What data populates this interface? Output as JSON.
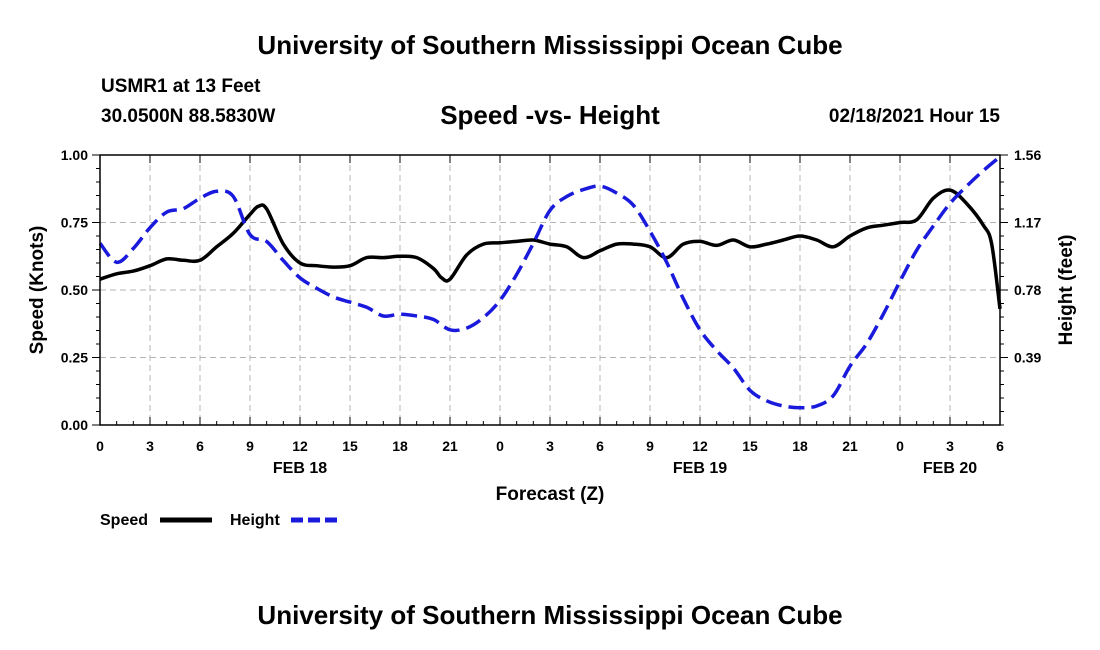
{
  "header": {
    "org_title": "University of Southern Mississippi Ocean Cube",
    "station": "USMR1 at 13 Feet",
    "coords": "30.0500N 88.5830W",
    "chart_title": "Speed -vs- Height",
    "timestamp": "02/18/2021 Hour 15"
  },
  "footer": {
    "org_title": "University of Southern Mississippi Ocean Cube"
  },
  "legend": {
    "speed_label": "Speed",
    "height_label": "Height"
  },
  "colors": {
    "speed": "#000000",
    "height": "#1a1adc",
    "grid": "#b4b4b4"
  },
  "chart_data": {
    "type": "line",
    "title": "Speed -vs- Height",
    "xlabel": "Forecast (Z)",
    "ylabel": "Speed (Knots)",
    "y2label": "Height (feet)",
    "xlim": [
      0,
      54
    ],
    "ylim": [
      0,
      1
    ],
    "y2lim": [
      0,
      1.56
    ],
    "x_ticks": [
      0,
      3,
      6,
      9,
      12,
      15,
      18,
      21,
      24,
      27,
      30,
      33,
      36,
      39,
      42,
      45,
      48,
      51,
      54
    ],
    "x_tick_labels": [
      "0",
      "3",
      "6",
      "9",
      "12",
      "15",
      "18",
      "21",
      "0",
      "3",
      "6",
      "9",
      "12",
      "15",
      "18",
      "21",
      "0",
      "3",
      "6"
    ],
    "date_labels": [
      {
        "x": 12,
        "label": "FEB 18"
      },
      {
        "x": 36,
        "label": "FEB 19"
      },
      {
        "x": 51,
        "label": "FEB 20"
      }
    ],
    "y_ticks": [
      0,
      0.25,
      0.5,
      0.75,
      1.0
    ],
    "y_tick_labels": [
      "0.00",
      "0.25",
      "0.50",
      "0.75",
      "1.00"
    ],
    "y2_ticks": [
      0.39,
      0.78,
      1.17,
      1.56
    ],
    "y2_tick_labels": [
      "0.39",
      "0.78",
      "1.17",
      "1.56"
    ],
    "grid": true,
    "series": [
      {
        "name": "Speed",
        "axis": "left",
        "style": "solid",
        "x": [
          0,
          1,
          2,
          3,
          4,
          5,
          6,
          7,
          8,
          9,
          9.5,
          10,
          11,
          12,
          13,
          14,
          15,
          16,
          17,
          18,
          19,
          20,
          20.5,
          21,
          22,
          23,
          24,
          25,
          26,
          27,
          28,
          29,
          30,
          31,
          32,
          33,
          34,
          35,
          36,
          37,
          38,
          39,
          40,
          41,
          42,
          43,
          44,
          45,
          46,
          47,
          48,
          49,
          50,
          51,
          52,
          53,
          53.5,
          54
        ],
        "values": [
          0.54,
          0.56,
          0.57,
          0.59,
          0.615,
          0.61,
          0.61,
          0.66,
          0.71,
          0.78,
          0.81,
          0.8,
          0.67,
          0.6,
          0.59,
          0.585,
          0.59,
          0.62,
          0.62,
          0.625,
          0.62,
          0.58,
          0.545,
          0.54,
          0.63,
          0.67,
          0.675,
          0.68,
          0.685,
          0.67,
          0.66,
          0.62,
          0.645,
          0.67,
          0.67,
          0.66,
          0.62,
          0.67,
          0.68,
          0.665,
          0.685,
          0.66,
          0.67,
          0.685,
          0.7,
          0.685,
          0.66,
          0.7,
          0.73,
          0.74,
          0.75,
          0.76,
          0.84,
          0.87,
          0.82,
          0.74,
          0.67,
          0.43
        ]
      },
      {
        "name": "Height",
        "axis": "right",
        "style": "dashed",
        "x": [
          0,
          1,
          2,
          3,
          4,
          5,
          6,
          7,
          8,
          9,
          10,
          11,
          12,
          13,
          14,
          15,
          16,
          17,
          18,
          19,
          20,
          21,
          22,
          23,
          24,
          25,
          26,
          27,
          28,
          29,
          30,
          31,
          32,
          33,
          34,
          35,
          36,
          37,
          38,
          39,
          40,
          41,
          42,
          43,
          44,
          45,
          46,
          47,
          48,
          49,
          50,
          51,
          52,
          53,
          54
        ],
        "values": [
          1.05,
          0.94,
          1.02,
          1.14,
          1.23,
          1.25,
          1.31,
          1.35,
          1.32,
          1.1,
          1.06,
          0.95,
          0.85,
          0.79,
          0.74,
          0.71,
          0.68,
          0.63,
          0.64,
          0.63,
          0.61,
          0.55,
          0.56,
          0.62,
          0.72,
          0.87,
          1.05,
          1.24,
          1.32,
          1.36,
          1.38,
          1.34,
          1.27,
          1.12,
          0.94,
          0.73,
          0.55,
          0.43,
          0.33,
          0.2,
          0.14,
          0.11,
          0.1,
          0.11,
          0.17,
          0.34,
          0.47,
          0.64,
          0.83,
          1.01,
          1.15,
          1.28,
          1.38,
          1.47,
          1.55
        ]
      }
    ]
  }
}
